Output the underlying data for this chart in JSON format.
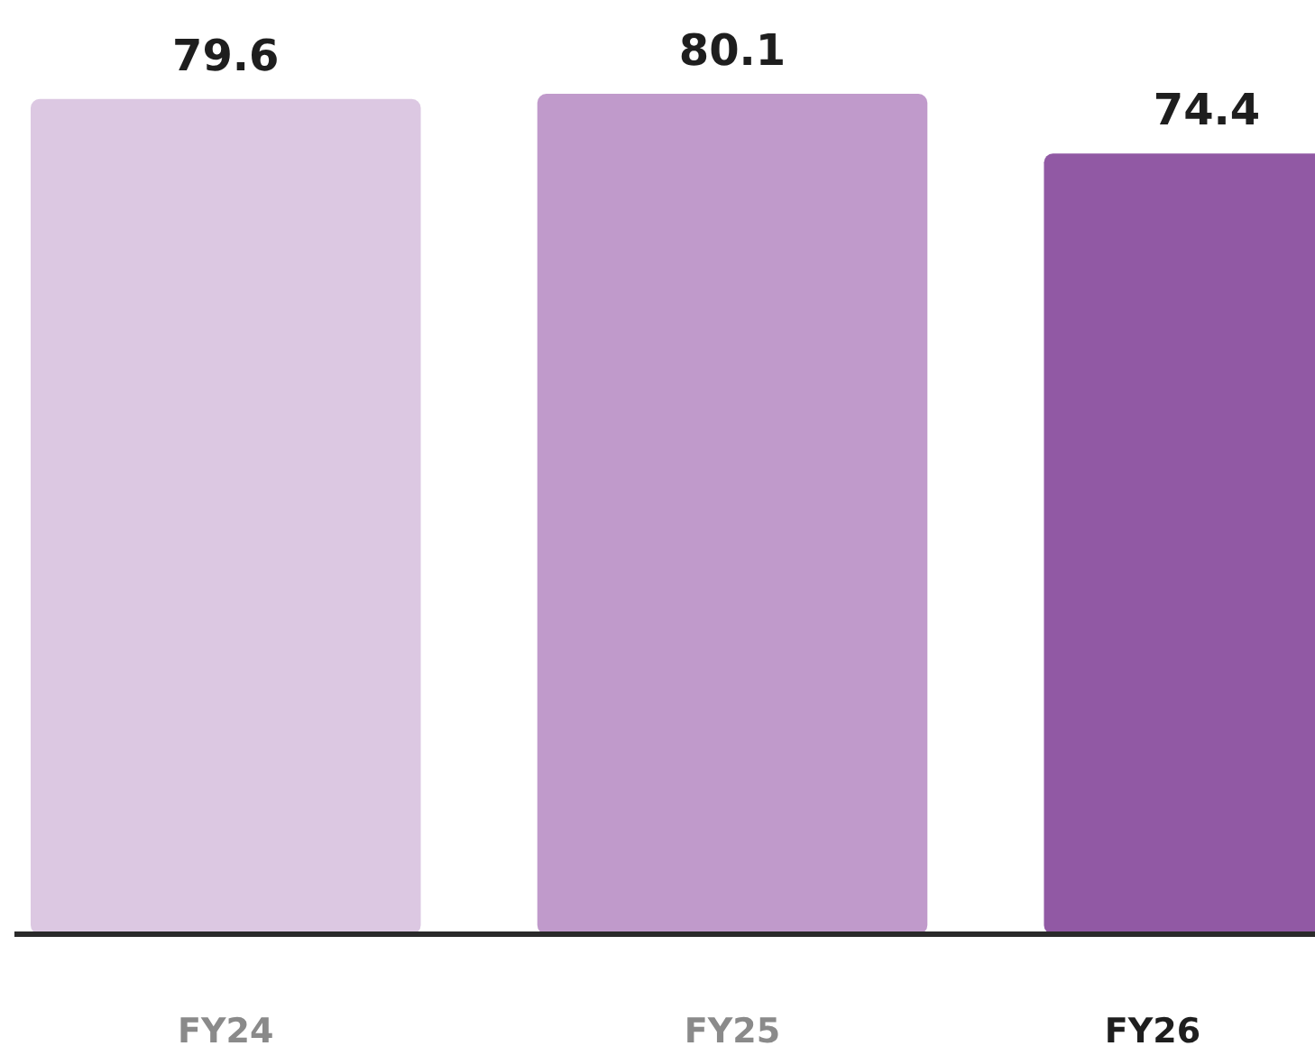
{
  "chart_data": {
    "type": "bar",
    "categories": [
      "FY24",
      "FY25",
      "FY26"
    ],
    "values": [
      79.6,
      80.1,
      74.4
    ],
    "colors": [
      "#dcc8e2",
      "#c09acb",
      "#9159a4"
    ],
    "data_labels": true
  }
}
